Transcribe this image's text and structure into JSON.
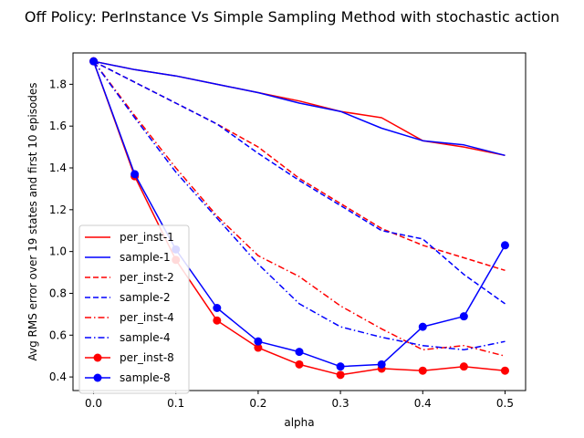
{
  "chart_data": {
    "type": "line",
    "title": "Off Policy: PerInstance Vs Simple Sampling Method with stochastic action",
    "xlabel": "alpha",
    "ylabel": "Avg RMS error over 19 states and first 10 episodes",
    "xlim": [
      -0.025,
      0.525
    ],
    "ylim": [
      0.335,
      1.95
    ],
    "xticks": [
      0.0,
      0.1,
      0.2,
      0.3,
      0.4,
      0.5
    ],
    "xtick_labels": [
      "0.0",
      "0.1",
      "0.2",
      "0.3",
      "0.4",
      "0.5"
    ],
    "yticks": [
      0.4,
      0.6,
      0.8,
      1.0,
      1.2,
      1.4,
      1.6,
      1.8
    ],
    "ytick_labels": [
      "0.4",
      "0.6",
      "0.8",
      "1.0",
      "1.2",
      "1.4",
      "1.6",
      "1.8"
    ],
    "grid": false,
    "legend_position": "lower-left",
    "x": [
      0.0,
      0.05,
      0.1,
      0.15,
      0.2,
      0.25,
      0.3,
      0.35,
      0.4,
      0.45,
      0.5
    ],
    "series": [
      {
        "name": "per_inst-1",
        "color": "#ff0000",
        "style": "solid",
        "marker": "none",
        "values": [
          1.91,
          1.87,
          1.84,
          1.8,
          1.76,
          1.72,
          1.67,
          1.64,
          1.53,
          1.5,
          1.46
        ]
      },
      {
        "name": "sample-1",
        "color": "#0000ff",
        "style": "solid",
        "marker": "none",
        "values": [
          1.91,
          1.87,
          1.84,
          1.8,
          1.76,
          1.71,
          1.67,
          1.59,
          1.53,
          1.51,
          1.46
        ]
      },
      {
        "name": "per_inst-2",
        "color": "#ff0000",
        "style": "dashed",
        "marker": "none",
        "values": [
          1.91,
          1.81,
          1.71,
          1.61,
          1.5,
          1.35,
          1.23,
          1.11,
          1.03,
          0.97,
          0.91
        ]
      },
      {
        "name": "sample-2",
        "color": "#0000ff",
        "style": "dashed",
        "marker": "none",
        "values": [
          1.91,
          1.81,
          1.71,
          1.61,
          1.47,
          1.34,
          1.22,
          1.1,
          1.06,
          0.89,
          0.75
        ]
      },
      {
        "name": "per_inst-4",
        "color": "#ff0000",
        "style": "dashdot",
        "marker": "none",
        "values": [
          1.91,
          1.65,
          1.4,
          1.17,
          0.98,
          0.88,
          0.74,
          0.63,
          0.53,
          0.55,
          0.5
        ]
      },
      {
        "name": "sample-4",
        "color": "#0000ff",
        "style": "dashdot",
        "marker": "none",
        "values": [
          1.91,
          1.64,
          1.38,
          1.16,
          0.94,
          0.75,
          0.64,
          0.59,
          0.55,
          0.53,
          0.57
        ]
      },
      {
        "name": "per_inst-8",
        "color": "#ff0000",
        "style": "solid",
        "marker": "circle",
        "values": [
          1.91,
          1.36,
          0.96,
          0.67,
          0.54,
          0.46,
          0.41,
          0.44,
          0.43,
          0.45,
          0.43
        ]
      },
      {
        "name": "sample-8",
        "color": "#0000ff",
        "style": "solid",
        "marker": "circle",
        "values": [
          1.91,
          1.37,
          1.01,
          0.73,
          0.57,
          0.52,
          0.45,
          0.46,
          0.64,
          0.69,
          1.03
        ]
      }
    ]
  }
}
